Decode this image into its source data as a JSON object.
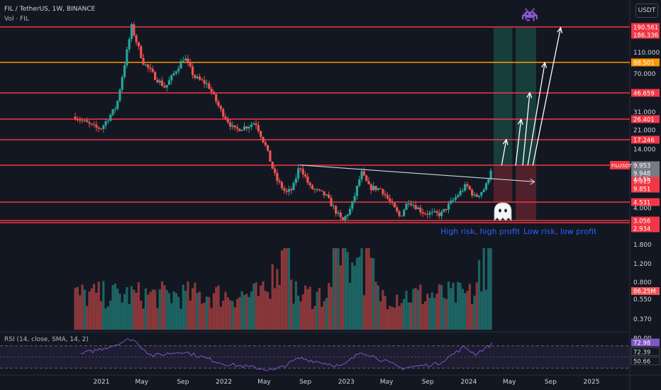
{
  "header": {
    "symbol_line": "FIL / TetherUS, 1W, BINANCE",
    "volume_label": "Vol · FIL",
    "currency_button": "USDT"
  },
  "rsi_label": "RSI (14, close, SMA, 14, 2)",
  "annotations": {
    "left_zone": "High risk, high profit",
    "right_zone": "Low risk, low profit"
  },
  "price_axis": {
    "scale": "log",
    "ticks": [
      "160.000",
      "110.000",
      "70.000",
      "47.000",
      "31.000",
      "21.000",
      "14.000",
      "6.000",
      "4.000"
    ],
    "level_lines": [
      {
        "value": 190.561,
        "label": "190.561",
        "color": "#f23645"
      },
      {
        "value": 186.336,
        "label": "186.336",
        "color": "#f23645"
      },
      {
        "value": 88.501,
        "label": "88.501",
        "color": "#ff9800"
      },
      {
        "value": 46.659,
        "label": "46.659",
        "color": "#f23645"
      },
      {
        "value": 26.401,
        "label": "26.401",
        "color": "#f23645"
      },
      {
        "value": 17.246,
        "label": "17.246",
        "color": "#f23645"
      },
      {
        "value": 9.953,
        "label": "9.953",
        "color": "#787b86"
      },
      {
        "value": 9.948,
        "label": "9.948",
        "color": "#787b86"
      },
      {
        "value": 9.915,
        "label": "9.915",
        "color": "#f23645"
      },
      {
        "value": 9.851,
        "label": "9.851",
        "color": "#f23645"
      },
      {
        "value": 4.531,
        "label": "4.531",
        "color": "#f23645"
      },
      {
        "value": 3.056,
        "label": "3.056",
        "color": "#f23645"
      },
      {
        "value": 2.934,
        "label": "2.934",
        "color": "#f23645"
      }
    ],
    "current_price_tag": {
      "symbol": "FILUSDT",
      "price": "9.915",
      "countdown": "4d 5h",
      "color": "#f23645"
    }
  },
  "volume_axis": {
    "ticks": [
      "1.800",
      "1.200",
      "0.800",
      "0.550",
      "0.370"
    ],
    "current_label": "86.25M"
  },
  "rsi_axis": {
    "ticks": [
      "80.00"
    ],
    "labels": [
      {
        "label": "72.98",
        "color": "#7e57c2"
      },
      {
        "label": "72.39",
        "color": "#131722"
      },
      {
        "label": "50.66",
        "color": "#131722"
      }
    ]
  },
  "time_axis": {
    "labels": [
      "2021",
      "May",
      "Sep",
      "2022",
      "May",
      "Sep",
      "2023",
      "May",
      "Sep",
      "2024",
      "May",
      "Sep",
      "2025"
    ]
  },
  "colors": {
    "bg": "#131722",
    "up": "#26a69a",
    "down": "#ef5350",
    "level": "#f23645",
    "orange": "#ff9800",
    "rsi": "#7e57c2",
    "text": "#d1d4dc",
    "annotation": "#2962ff"
  },
  "icons": [
    "ghost-icon",
    "pixel-alien-icon"
  ],
  "chart_data": {
    "type": "candlestick",
    "symbol": "FIL / TetherUS",
    "interval": "1W",
    "exchange": "BINANCE",
    "y_scale": "log",
    "ylim": [
      2.3,
      220
    ],
    "price_path_pivots": [
      {
        "date": "2020-10-15",
        "price": 28
      },
      {
        "date": "2020-11-01",
        "price": 26
      },
      {
        "date": "2020-12-15",
        "price": 22
      },
      {
        "date": "2021-01-01",
        "price": 22
      },
      {
        "date": "2021-02-15",
        "price": 35
      },
      {
        "date": "2021-04-01",
        "price": 190
      },
      {
        "date": "2021-05-05",
        "price": 90
      },
      {
        "date": "2021-06-10",
        "price": 65
      },
      {
        "date": "2021-07-10",
        "price": 52
      },
      {
        "date": "2021-09-05",
        "price": 100
      },
      {
        "date": "2021-10-05",
        "price": 65
      },
      {
        "date": "2021-11-15",
        "price": 55
      },
      {
        "date": "2021-12-20",
        "price": 33
      },
      {
        "date": "2022-02-01",
        "price": 21
      },
      {
        "date": "2022-03-15",
        "price": 23
      },
      {
        "date": "2022-04-05",
        "price": 25
      },
      {
        "date": "2022-05-05",
        "price": 15
      },
      {
        "date": "2022-06-05",
        "price": 7.5
      },
      {
        "date": "2022-07-05",
        "price": 5.5
      },
      {
        "date": "2022-07-25",
        "price": 6.0
      },
      {
        "date": "2022-08-15",
        "price": 10.0
      },
      {
        "date": "2022-09-15",
        "price": 6.2
      },
      {
        "date": "2022-11-01",
        "price": 5.2
      },
      {
        "date": "2022-12-20",
        "price": 3.0
      },
      {
        "date": "2023-01-15",
        "price": 4.0
      },
      {
        "date": "2023-02-15",
        "price": 8.5
      },
      {
        "date": "2023-03-10",
        "price": 6.2
      },
      {
        "date": "2023-04-15",
        "price": 6.0
      },
      {
        "date": "2023-06-10",
        "price": 3.3
      },
      {
        "date": "2023-07-05",
        "price": 4.7
      },
      {
        "date": "2023-08-20",
        "price": 3.6
      },
      {
        "date": "2023-10-10",
        "price": 3.5
      },
      {
        "date": "2023-11-20",
        "price": 4.9
      },
      {
        "date": "2023-12-25",
        "price": 6.5
      },
      {
        "date": "2024-01-20",
        "price": 5.0
      },
      {
        "date": "2024-02-20",
        "price": 6.2
      },
      {
        "date": "2024-03-10",
        "price": 9.915
      }
    ],
    "volume_scale": [
      0.3,
      2.0
    ],
    "volume_peak_dates": [
      "2022-06-20",
      "2022-12-20",
      "2023-02-20",
      "2024-03-01"
    ],
    "rsi_pivots": [
      {
        "date": "2020-11-01",
        "rsi": 55
      },
      {
        "date": "2021-02-01",
        "rsi": 70
      },
      {
        "date": "2021-04-01",
        "rsi": 83
      },
      {
        "date": "2021-06-01",
        "rsi": 52
      },
      {
        "date": "2021-09-01",
        "rsi": 60
      },
      {
        "date": "2022-01-01",
        "rsi": 38
      },
      {
        "date": "2022-06-01",
        "rsi": 26
      },
      {
        "date": "2022-08-15",
        "rsi": 48
      },
      {
        "date": "2022-12-20",
        "rsi": 33
      },
      {
        "date": "2023-02-15",
        "rsi": 60
      },
      {
        "date": "2023-06-15",
        "rsi": 30
      },
      {
        "date": "2023-10-01",
        "rsi": 38
      },
      {
        "date": "2023-12-20",
        "rsi": 68
      },
      {
        "date": "2024-01-20",
        "rsi": 55
      },
      {
        "date": "2024-03-10",
        "rsi": 72.98
      }
    ],
    "trendline": {
      "from": {
        "date": "2022-08-15",
        "price": 10.0
      },
      "to": {
        "date": "2024-07-15",
        "price": 7.0
      }
    },
    "zones": [
      {
        "name": "High risk, high profit",
        "x": [
          "2024-03-15",
          "2024-05-10"
        ],
        "target": [
          9.9,
          186.336
        ],
        "risk": [
          4.5,
          9.9
        ]
      },
      {
        "name": "Low risk, low profit",
        "x": [
          "2024-05-20",
          "2024-07-20"
        ],
        "target": [
          9.9,
          186.336
        ],
        "risk": [
          3.05,
          9.9
        ]
      }
    ],
    "target_arrows": [
      {
        "from": {
          "date": "2024-04-08",
          "price": 9.9
        },
        "to": {
          "date": "2024-04-22",
          "price": 17.2
        }
      },
      {
        "from": {
          "date": "2024-05-20",
          "price": 9.9
        },
        "to": {
          "date": "2024-06-05",
          "price": 26.4
        }
      },
      {
        "from": {
          "date": "2024-06-10",
          "price": 9.9
        },
        "to": {
          "date": "2024-07-01",
          "price": 46.7
        }
      },
      {
        "from": {
          "date": "2024-06-25",
          "price": 9.9
        },
        "to": {
          "date": "2024-08-15",
          "price": 88.5
        }
      },
      {
        "from": {
          "date": "2024-07-10",
          "price": 9.9
        },
        "to": {
          "date": "2024-10-01",
          "price": 186.336
        }
      }
    ],
    "x_labels": [
      "2021",
      "May",
      "Sep",
      "2022",
      "May",
      "Sep",
      "2023",
      "May",
      "Sep",
      "2024",
      "May",
      "Sep",
      "2025"
    ]
  }
}
